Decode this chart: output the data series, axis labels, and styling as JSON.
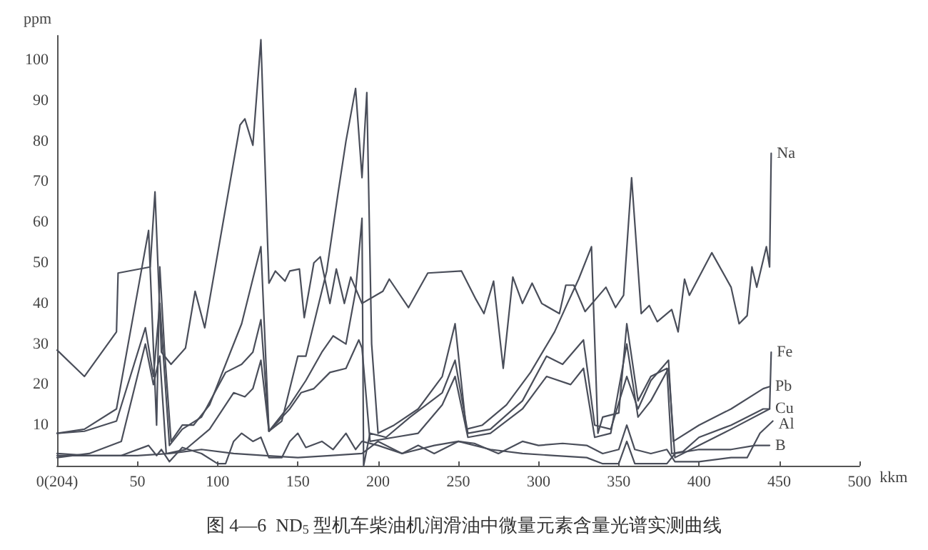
{
  "chart_data": {
    "type": "line",
    "title": "图 4—6  ND$_{5}$ 型机车柴油机润滑油中微量元素含量光谱实测曲线",
    "xlabel": "kkm",
    "ylabel": "ppm",
    "xlim": [
      0,
      500
    ],
    "xticks": [
      {
        "value": 0,
        "label": "0(204)"
      },
      50,
      100,
      150,
      200,
      250,
      300,
      350,
      400,
      450,
      500
    ],
    "ylim": [
      0,
      106
    ],
    "yticks": [
      10,
      20,
      30,
      40,
      50,
      60,
      70,
      80,
      90,
      100
    ],
    "grid": false,
    "legend": false,
    "marker": "none",
    "line_style": "solid",
    "series": [
      {
        "name": "Na",
        "color": "#4a4e5a",
        "x": [
          0,
          17,
          37,
          38,
          58,
          61,
          65,
          71,
          80,
          86,
          92,
          114,
          117,
          122,
          127,
          132,
          136,
          142,
          145,
          151,
          154,
          160,
          164,
          170,
          174,
          179,
          183,
          190,
          203,
          207,
          219,
          231,
          252,
          261,
          266,
          272,
          278,
          284,
          290,
          296,
          302,
          313,
          317,
          322,
          329,
          342,
          348,
          353,
          358,
          364,
          369,
          374,
          383,
          387,
          391,
          394,
          408,
          420,
          425,
          430,
          433,
          436,
          442,
          444,
          445
        ],
        "values": [
          28.5,
          22,
          33,
          47.5,
          49,
          67.5,
          28,
          25,
          29,
          43,
          34,
          84,
          85.5,
          79,
          105,
          45,
          48,
          45.5,
          48,
          48.5,
          36.5,
          50,
          51.5,
          40,
          48.5,
          40,
          46.5,
          40,
          43,
          46,
          39,
          47.5,
          48,
          41,
          37.5,
          45.5,
          24,
          46.5,
          40,
          45,
          40,
          37.5,
          44.5,
          44.5,
          38,
          44,
          39,
          42,
          71,
          37.5,
          39.5,
          35.5,
          38.5,
          33,
          46,
          42,
          52.5,
          44,
          35,
          37,
          49,
          44,
          54,
          49,
          77
        ]
      },
      {
        "name": "Fe",
        "color": "#4a4e5a",
        "x": [
          0,
          17,
          37,
          57,
          62,
          64,
          67,
          71,
          78,
          85,
          95,
          105,
          115,
          127,
          132,
          140,
          150,
          155,
          160,
          168,
          175,
          180,
          186,
          190,
          193,
          196,
          200,
          210,
          225,
          240,
          248,
          255,
          265,
          280,
          295,
          310,
          318,
          325,
          333,
          337,
          340,
          350,
          355,
          362,
          370,
          380,
          383,
          390,
          400,
          420,
          435,
          440,
          444,
          445
        ],
        "values": [
          8,
          9,
          14,
          58,
          10,
          49,
          28,
          6,
          10,
          10,
          15,
          25,
          35,
          54,
          8.5,
          11,
          27,
          27,
          35,
          48,
          67,
          80,
          93,
          71,
          92,
          30,
          8,
          10,
          14,
          22,
          35,
          9,
          10,
          15,
          23,
          33,
          40,
          46,
          54,
          8,
          12,
          13,
          35,
          16,
          22,
          24,
          3,
          3.5,
          7,
          10,
          13,
          14,
          14,
          28
        ]
      },
      {
        "name": "Pb",
        "color": "#4a4e5a",
        "x": [
          0,
          17,
          37,
          55,
          60,
          64,
          70,
          78,
          90,
          105,
          115,
          122,
          127,
          132,
          145,
          155,
          165,
          172,
          180,
          186,
          190,
          191,
          195,
          205,
          220,
          240,
          248,
          256,
          270,
          290,
          305,
          315,
          328,
          335,
          345,
          355,
          362,
          370,
          381,
          384,
          400,
          420,
          440,
          444
        ],
        "values": [
          8,
          8.5,
          11,
          34,
          22,
          40,
          5,
          9,
          12,
          23,
          25,
          28,
          36,
          8.5,
          15,
          21,
          28,
          32,
          30,
          43,
          61,
          0,
          8,
          7,
          12,
          18,
          26,
          8,
          9,
          16,
          27,
          25,
          31,
          10,
          9,
          22,
          14,
          21,
          26,
          6,
          10,
          14,
          19,
          19.5
        ]
      },
      {
        "name": "Cu",
        "color": "#4a4e5a",
        "x": [
          0,
          20,
          40,
          55,
          60,
          64,
          68,
          80,
          95,
          110,
          117,
          122,
          127,
          132,
          145,
          152,
          160,
          170,
          180,
          188,
          190,
          195,
          210,
          225,
          240,
          248,
          256,
          270,
          290,
          305,
          320,
          328,
          335,
          345,
          355,
          362,
          370,
          381,
          385,
          400,
          420,
          444
        ],
        "values": [
          2,
          3,
          6,
          30,
          20,
          27,
          3,
          4,
          9,
          18,
          17,
          19,
          26,
          8.5,
          14,
          18,
          19,
          23,
          24,
          31,
          29,
          6,
          7,
          8,
          15,
          22,
          7,
          8,
          14,
          22,
          20,
          24,
          7,
          8,
          30,
          12,
          16,
          24,
          2,
          5,
          9,
          14
        ]
      },
      {
        "name": "Al",
        "color": "#4a4e5a",
        "x": [
          0,
          40,
          57,
          62,
          65,
          70,
          78,
          90,
          100,
          105,
          110,
          115,
          122,
          127,
          132,
          140,
          145,
          150,
          155,
          165,
          172,
          180,
          186,
          190,
          200,
          215,
          225,
          235,
          250,
          260,
          275,
          290,
          300,
          315,
          330,
          340,
          350,
          355,
          360,
          370,
          380,
          385,
          400,
          420,
          430,
          438,
          446
        ],
        "values": [
          2.5,
          2.5,
          5,
          2.5,
          4,
          1,
          4.5,
          3,
          0.5,
          0.5,
          6,
          8,
          6,
          7,
          2,
          2,
          6,
          8,
          4.5,
          6,
          4,
          8,
          4,
          6,
          5,
          3,
          5,
          3,
          6,
          5.5,
          3,
          6,
          5,
          5.5,
          5,
          3,
          4,
          10,
          4,
          3,
          4,
          1,
          1,
          2,
          2,
          8,
          11
        ]
      },
      {
        "name": "B",
        "color": "#4a4e5a",
        "x": [
          0,
          20,
          50,
          70,
          90,
          110,
          130,
          150,
          170,
          190,
          200,
          215,
          235,
          250,
          270,
          290,
          310,
          330,
          340,
          350,
          355,
          360,
          380,
          385,
          400,
          420,
          435,
          444
        ],
        "values": [
          3,
          2.5,
          2.5,
          3,
          4,
          3,
          2.5,
          2,
          2.5,
          3,
          6,
          3,
          5,
          6,
          4,
          3,
          2.5,
          2,
          0.5,
          0.5,
          6,
          0.5,
          0.5,
          3,
          4,
          4,
          5,
          5
        ]
      }
    ]
  }
}
